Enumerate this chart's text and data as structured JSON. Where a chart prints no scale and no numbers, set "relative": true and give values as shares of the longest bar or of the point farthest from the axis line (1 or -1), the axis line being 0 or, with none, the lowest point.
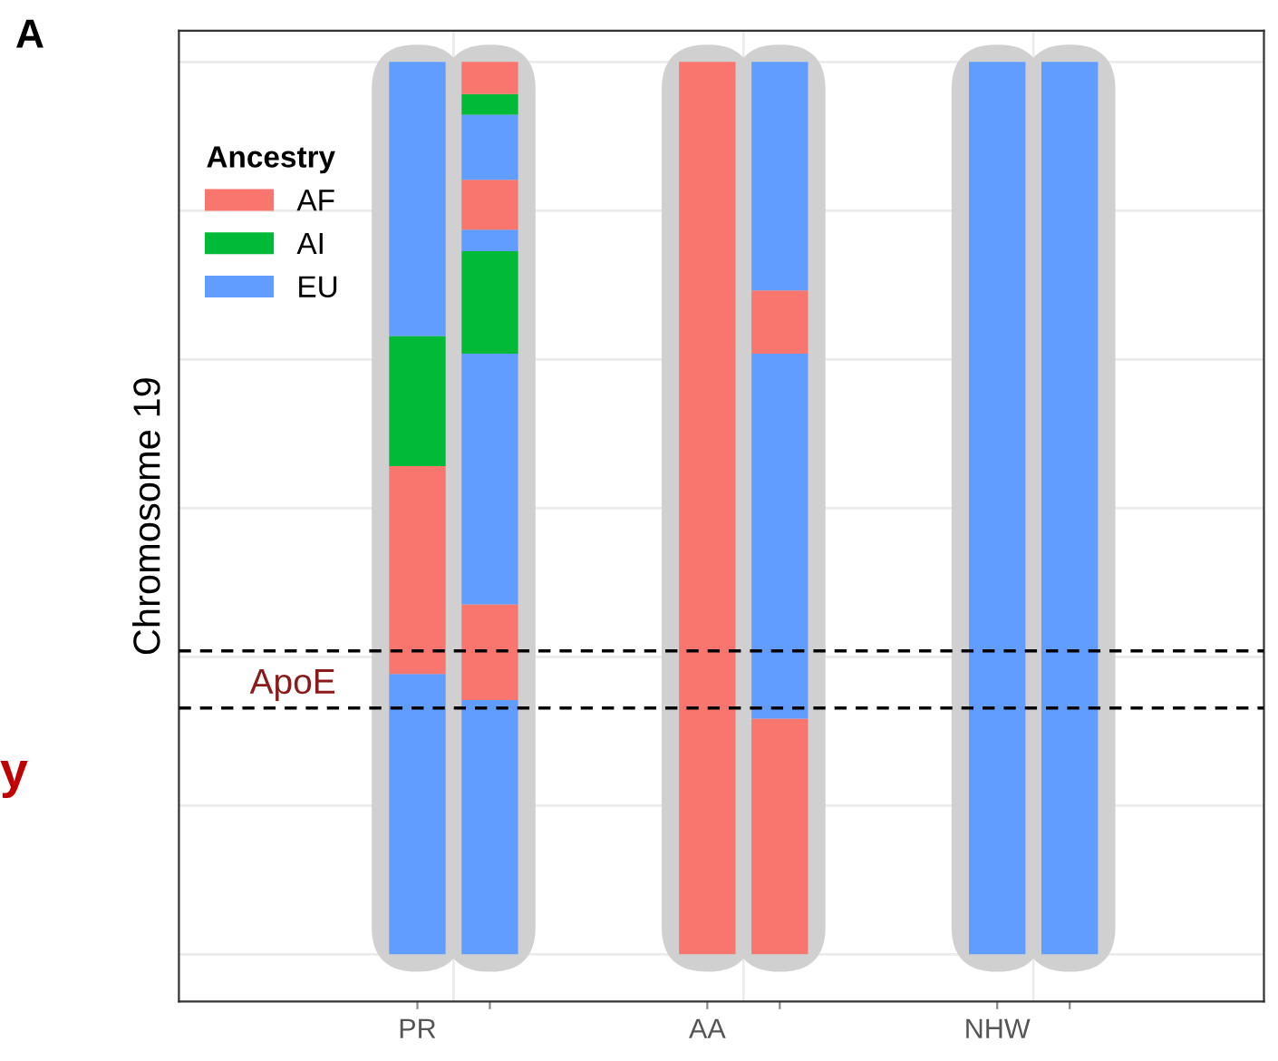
{
  "chart_data": {
    "type": "bar",
    "relative": true,
    "stacked": true,
    "ylabel": "Chromosome 19",
    "legend_title": "Ancestry",
    "legend": "top left",
    "grid": true,
    "categories": [
      "PR",
      null,
      "AA",
      null,
      "NHW",
      null
    ],
    "series": [
      {
        "color": "#619cff",
        "values": [
          0.314,
          0.285,
          null,
          null,
          1,
          1
        ]
      },
      {
        "name": "AF",
        "color": "#f8766d",
        "values": [
          0.233,
          0.107,
          1,
          0.264,
          null,
          null
        ]
      },
      {
        "color": "#619cff",
        "values": [
          null,
          0.281,
          null,
          0.409,
          null,
          null
        ]
      },
      {
        "name": "AI",
        "color": "#00ba38",
        "values": [
          0.146,
          0.115,
          null,
          null,
          null,
          null
        ]
      },
      {
        "name": "EU",
        "color": "#619cff",
        "values": [
          0.307,
          0.024,
          null,
          null,
          null,
          null
        ]
      },
      {
        "color": "#f8766d",
        "values": [
          null,
          0.056,
          null,
          0.071,
          null,
          null
        ]
      },
      {
        "color": "#619cff",
        "values": [
          null,
          0.073,
          null,
          0.256,
          null,
          null
        ]
      },
      {
        "color": "#00ba38",
        "values": [
          null,
          0.023,
          null,
          null,
          null,
          null
        ]
      },
      {
        "color": "#f8766d",
        "values": [
          null,
          0.036,
          null,
          null,
          null,
          null
        ]
      }
    ],
    "ref_lines": [
      {
        "axis": "y",
        "value": 0.34,
        "color": "#000000",
        "line_style": "dashed"
      },
      {
        "axis": "y",
        "value": 0.276,
        "label": "ApoE",
        "color": "#000000",
        "line_style": "dashed"
      }
    ],
    "annotations": [
      "A",
      "y"
    ]
  }
}
